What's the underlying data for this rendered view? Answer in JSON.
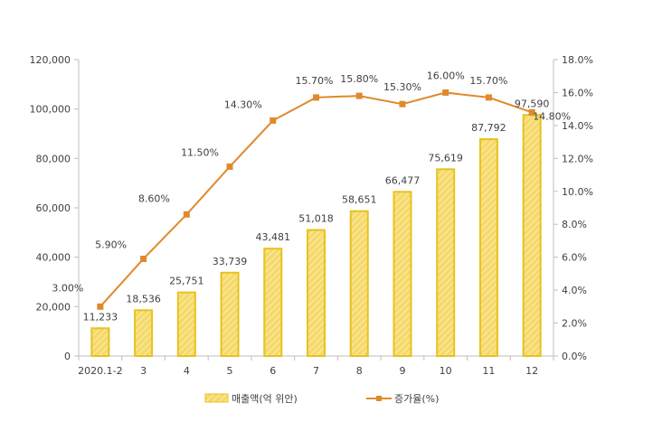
{
  "chart_data": {
    "type": "bar+line",
    "categories": [
      "2020.1-2",
      "3",
      "4",
      "5",
      "6",
      "7",
      "8",
      "9",
      "10",
      "11",
      "12"
    ],
    "series": [
      {
        "name": "매출액(억 위안)",
        "type": "bar",
        "axis": "left",
        "values": [
          11233,
          18536,
          25751,
          33739,
          43481,
          51018,
          58651,
          66477,
          75619,
          87792,
          97590
        ],
        "labels": [
          "11,233",
          "18,536",
          "25,751",
          "33,739",
          "43,481",
          "51,018",
          "58,651",
          "66,477",
          "75,619",
          "87,792",
          "97,590"
        ]
      },
      {
        "name": "증가율(%)",
        "type": "line",
        "axis": "right",
        "values": [
          3.0,
          5.9,
          8.6,
          11.5,
          14.3,
          15.7,
          15.8,
          15.3,
          16.0,
          15.7,
          14.8
        ],
        "labels": [
          "3.00%",
          "5.90%",
          "8.60%",
          "11.50%",
          "14.30%",
          "15.70%",
          "15.80%",
          "15.30%",
          "16.00%",
          "15.70%",
          "14.80%"
        ]
      }
    ],
    "y_left": {
      "range": [
        0,
        120000
      ],
      "ticks": [
        0,
        20000,
        40000,
        60000,
        80000,
        100000,
        120000
      ],
      "tick_labels": [
        "0",
        "20,000",
        "40,000",
        "60,000",
        "80,000",
        "100,000",
        "120,000"
      ]
    },
    "y_right": {
      "range": [
        0,
        18
      ],
      "ticks": [
        0,
        2,
        4,
        6,
        8,
        10,
        12,
        14,
        16,
        18
      ],
      "tick_labels": [
        "0.0%",
        "2.0%",
        "4.0%",
        "6.0%",
        "8.0%",
        "10.0%",
        "12.0%",
        "14.0%",
        "16.0%",
        "18.0%"
      ]
    },
    "grid": false,
    "legend_position": "bottom",
    "colors": {
      "bar_fill": "#f5d96b",
      "bar_stroke": "#e8c21e",
      "bar_hatch": "#fbeeb0",
      "line": "#e08a2c",
      "marker": "#e08a2c",
      "axis": "#bfbfbf",
      "text": "#404040"
    }
  }
}
